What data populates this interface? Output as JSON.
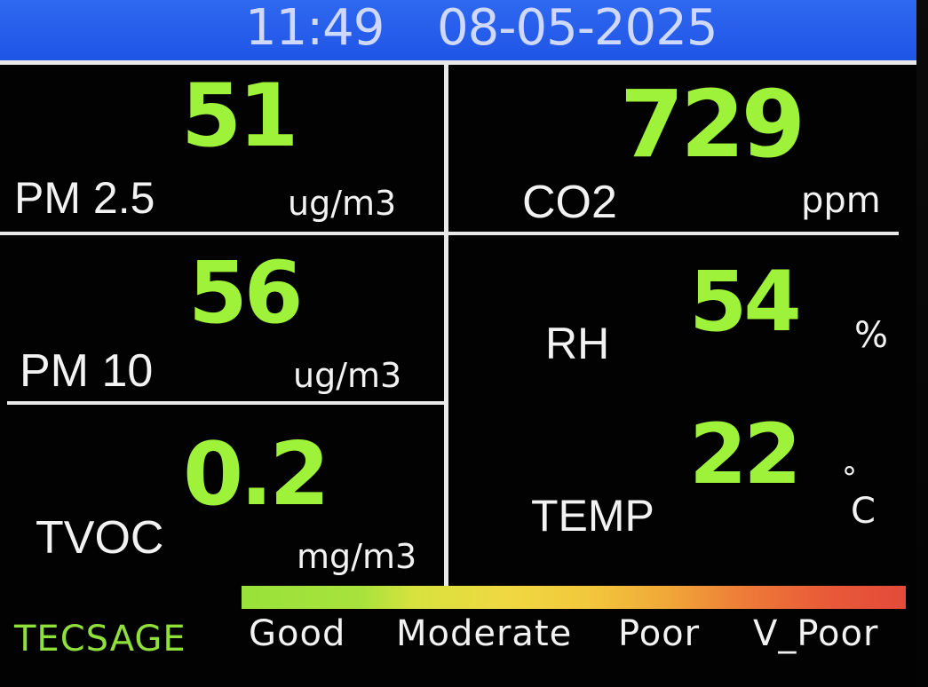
{
  "header": {
    "time": "11:49",
    "date": "08-05-2025"
  },
  "readings": {
    "pm25": {
      "label": "PM 2.5",
      "value": "51",
      "unit": "ug/m3"
    },
    "co2": {
      "label": "CO2",
      "value": "729",
      "unit": "ppm"
    },
    "pm10": {
      "label": "PM 10",
      "value": "56",
      "unit": "ug/m3"
    },
    "rh": {
      "label": "RH",
      "value": "54",
      "unit": "%"
    },
    "tvoc": {
      "label": "TVOC",
      "value": "0.2",
      "unit": "mg/m3"
    },
    "temp": {
      "label": "TEMP",
      "value": "22",
      "unit_degree": "°",
      "unit": "C"
    }
  },
  "footer": {
    "brand": "TECSAGE",
    "legend": [
      "Good",
      "Moderate",
      "Poor",
      "V_Poor"
    ]
  },
  "colors": {
    "header_bg": "#2f68f0",
    "value_green": "#9ef23a",
    "brand_green": "#8fe03a",
    "scale_good": "#98e23a",
    "scale_moderate": "#f0d842",
    "scale_poor": "#f0a838",
    "scale_vpoor": "#e44a3a"
  }
}
